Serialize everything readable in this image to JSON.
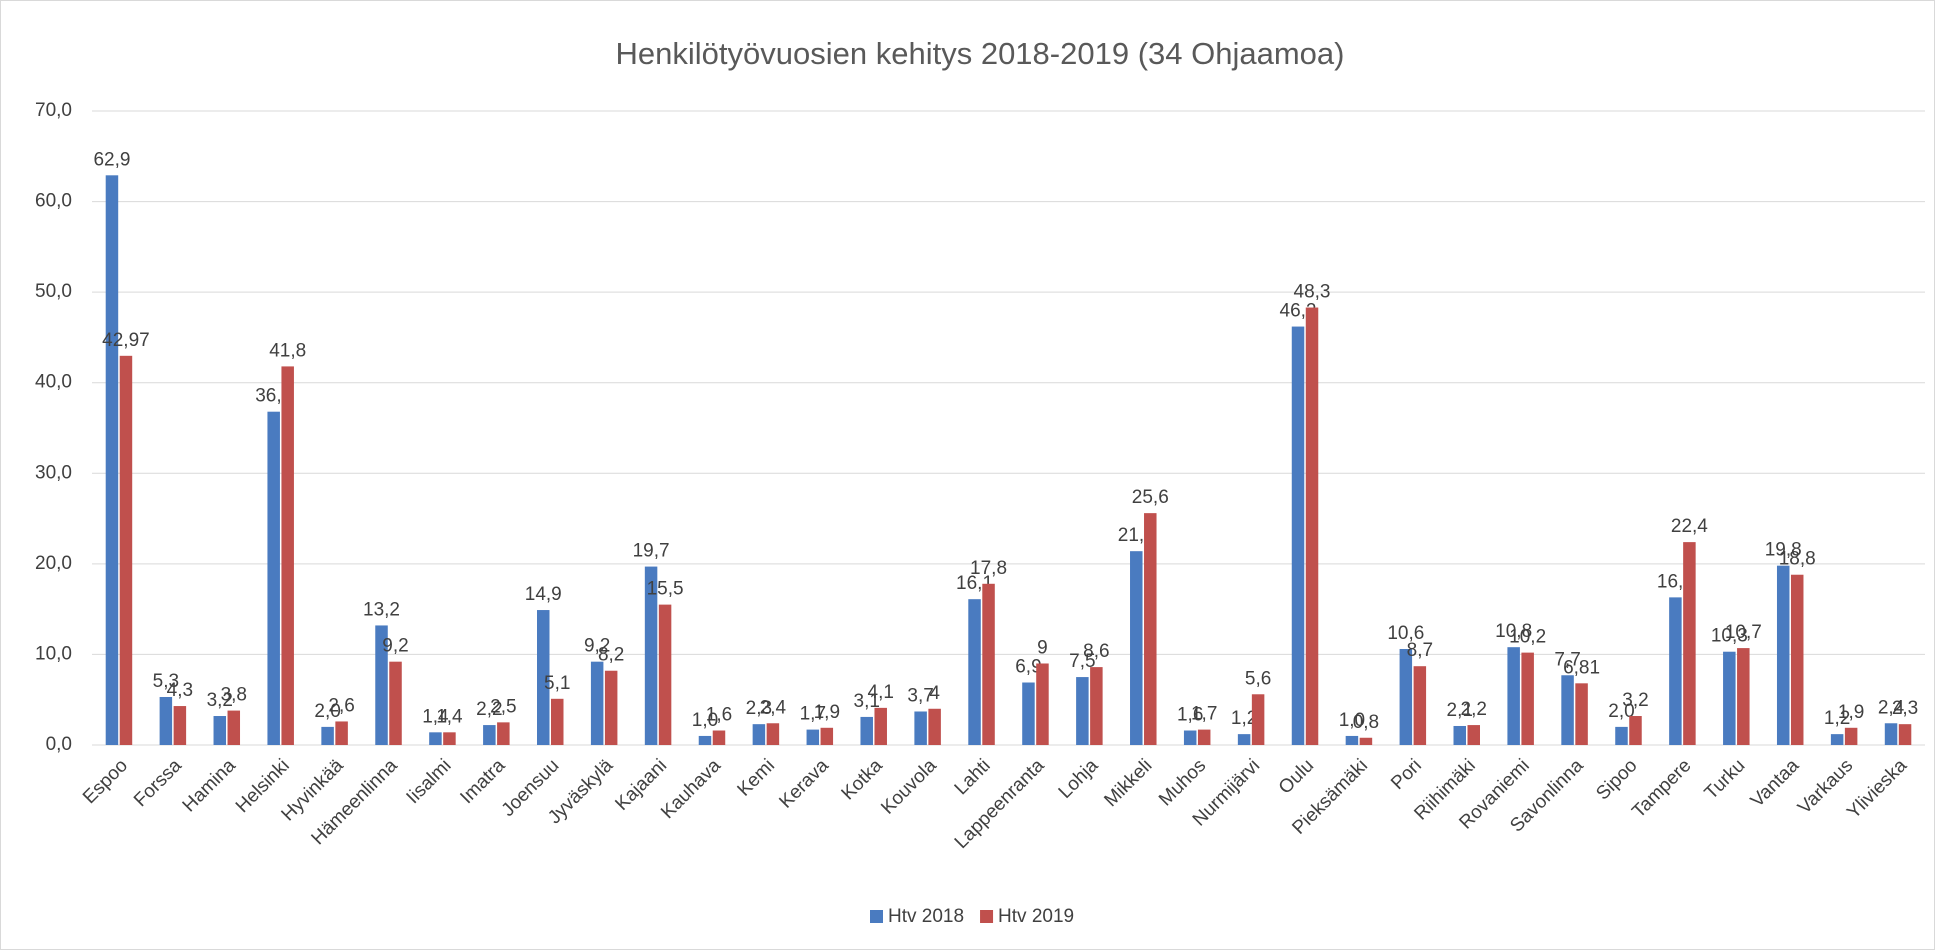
{
  "chart_data": {
    "type": "bar",
    "title": "Henkilötyövuosien kehitys 2018-2019 (34 Ohjaamoa)",
    "categories": [
      "Espoo",
      "Forssa",
      "Hamina",
      "Helsinki",
      "Hyvinkää",
      "Hämeenlinna",
      "Iisalmi",
      "Imatra",
      "Joensuu",
      "Jyväskylä",
      "Kajaani",
      "Kauhava",
      "Kemi",
      "Kerava",
      "Kotka",
      "Kouvola",
      "Lahti",
      "Lappeenranta",
      "Lohja",
      "Mikkeli",
      "Muhos",
      "Nurmijärvi",
      "Oulu",
      "Pieksämäki",
      "Pori",
      "Riihimäki",
      "Rovaniemi",
      "Savonlinna",
      "Sipoo",
      "Tampere",
      "Turku",
      "Vantaa",
      "Varkaus",
      "Ylivieska"
    ],
    "series": [
      {
        "name": "Htv 2018",
        "color": "#4a7bc0",
        "values": [
          62.9,
          5.3,
          3.2,
          36.8,
          2.0,
          13.2,
          1.4,
          2.2,
          14.9,
          9.2,
          19.7,
          1.0,
          2.3,
          1.7,
          3.1,
          3.7,
          16.1,
          6.9,
          7.5,
          21.4,
          1.6,
          1.2,
          46.2,
          1.0,
          10.6,
          2.1,
          10.8,
          7.7,
          2.0,
          16.3,
          10.3,
          19.8,
          1.2,
          2.4
        ],
        "value_labels": [
          "62,9",
          "5,3",
          "3,2",
          "36,8",
          "2,0",
          "13,2",
          "1,4",
          "2,2",
          "14,9",
          "9,2",
          "19,7",
          "1,0",
          "2,3",
          "1,7",
          "3,1",
          "3,7",
          "16,1",
          "6,9",
          "7,5",
          "21,4",
          "1,6",
          "1,2",
          "46,2",
          "1,0",
          "10,6",
          "2,1",
          "10,8",
          "7,7",
          "2,0",
          "16,3",
          "10,3",
          "19,8",
          "1,2",
          "2,4"
        ]
      },
      {
        "name": "Htv 2019",
        "color": "#c0504d",
        "values": [
          42.97,
          4.3,
          3.8,
          41.8,
          2.6,
          9.2,
          1.4,
          2.5,
          5.1,
          8.2,
          15.5,
          1.6,
          2.4,
          1.9,
          4.1,
          4,
          17.8,
          9,
          8.6,
          25.6,
          1.7,
          5.6,
          48.3,
          0.8,
          8.7,
          2.2,
          10.2,
          6.81,
          3.2,
          22.4,
          10.7,
          18.8,
          1.9,
          2.3
        ],
        "value_labels": [
          "42,97",
          "4,3",
          "3,8",
          "41,8",
          "2,6",
          "9,2",
          "1,4",
          "2,5",
          "5,1",
          "8,2",
          "15,5",
          "1,6",
          "2,4",
          "1,9",
          "4,1",
          "4",
          "17,8",
          "9",
          "8,6",
          "25,6",
          "1,7",
          "5,6",
          "48,3",
          "0,8",
          "8,7",
          "2,2",
          "10,2",
          "6,81",
          "3,2",
          "22,4",
          "10,7",
          "18,8",
          "1,9",
          "2,3"
        ]
      }
    ],
    "ylim": [
      0,
      70
    ],
    "yticks": [
      {
        "value": 0,
        "label": "0,0"
      },
      {
        "value": 10,
        "label": "10,0"
      },
      {
        "value": 20,
        "label": "20,0"
      },
      {
        "value": 30,
        "label": "30,0"
      },
      {
        "value": 40,
        "label": "40,0"
      },
      {
        "value": 50,
        "label": "50,0"
      },
      {
        "value": 60,
        "label": "60,0"
      },
      {
        "value": 70,
        "label": "70,0"
      }
    ],
    "grid": true,
    "legend": "bottom"
  }
}
